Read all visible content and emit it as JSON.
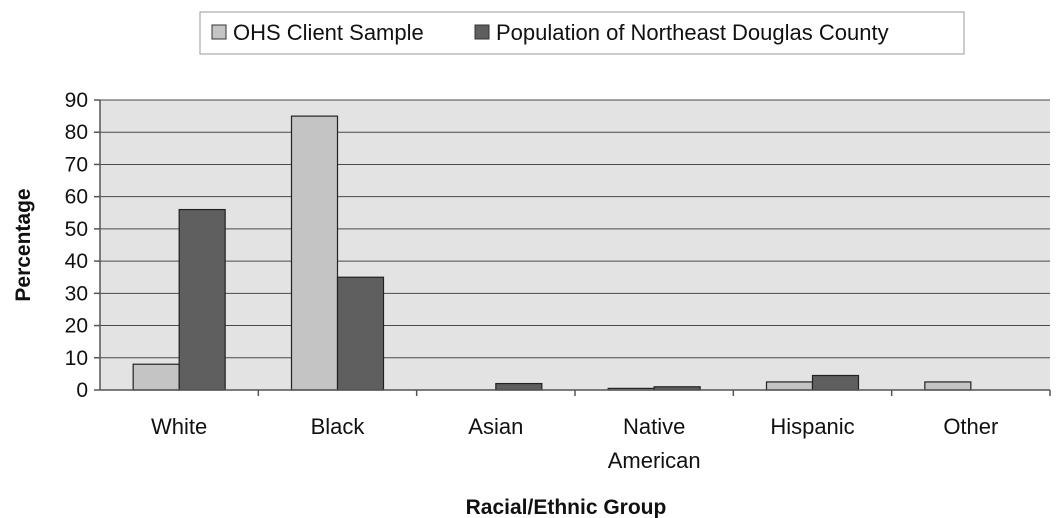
{
  "chart_data": {
    "type": "bar",
    "categories": [
      [
        "White"
      ],
      [
        "Black"
      ],
      [
        "Asian"
      ],
      [
        "Native",
        "American"
      ],
      [
        "Hispanic"
      ],
      [
        "Other"
      ]
    ],
    "series": [
      {
        "name": "OHS Client Sample",
        "values": [
          8,
          85,
          0,
          0.5,
          2.5,
          2.5
        ],
        "color": "#c4c4c4"
      },
      {
        "name": "Population of Northeast Douglas County",
        "values": [
          56,
          35,
          2,
          1,
          4.5,
          0
        ],
        "color": "#5f5f5f"
      }
    ],
    "title": "",
    "xlabel": "Racial/Ethnic Group",
    "ylabel": "Percentage",
    "ylim": [
      0,
      90
    ],
    "yticks": [
      0,
      10,
      20,
      30,
      40,
      50,
      60,
      70,
      80,
      90
    ],
    "grid": true,
    "legend_position": "top",
    "plot_background": "#e3e3e3"
  }
}
